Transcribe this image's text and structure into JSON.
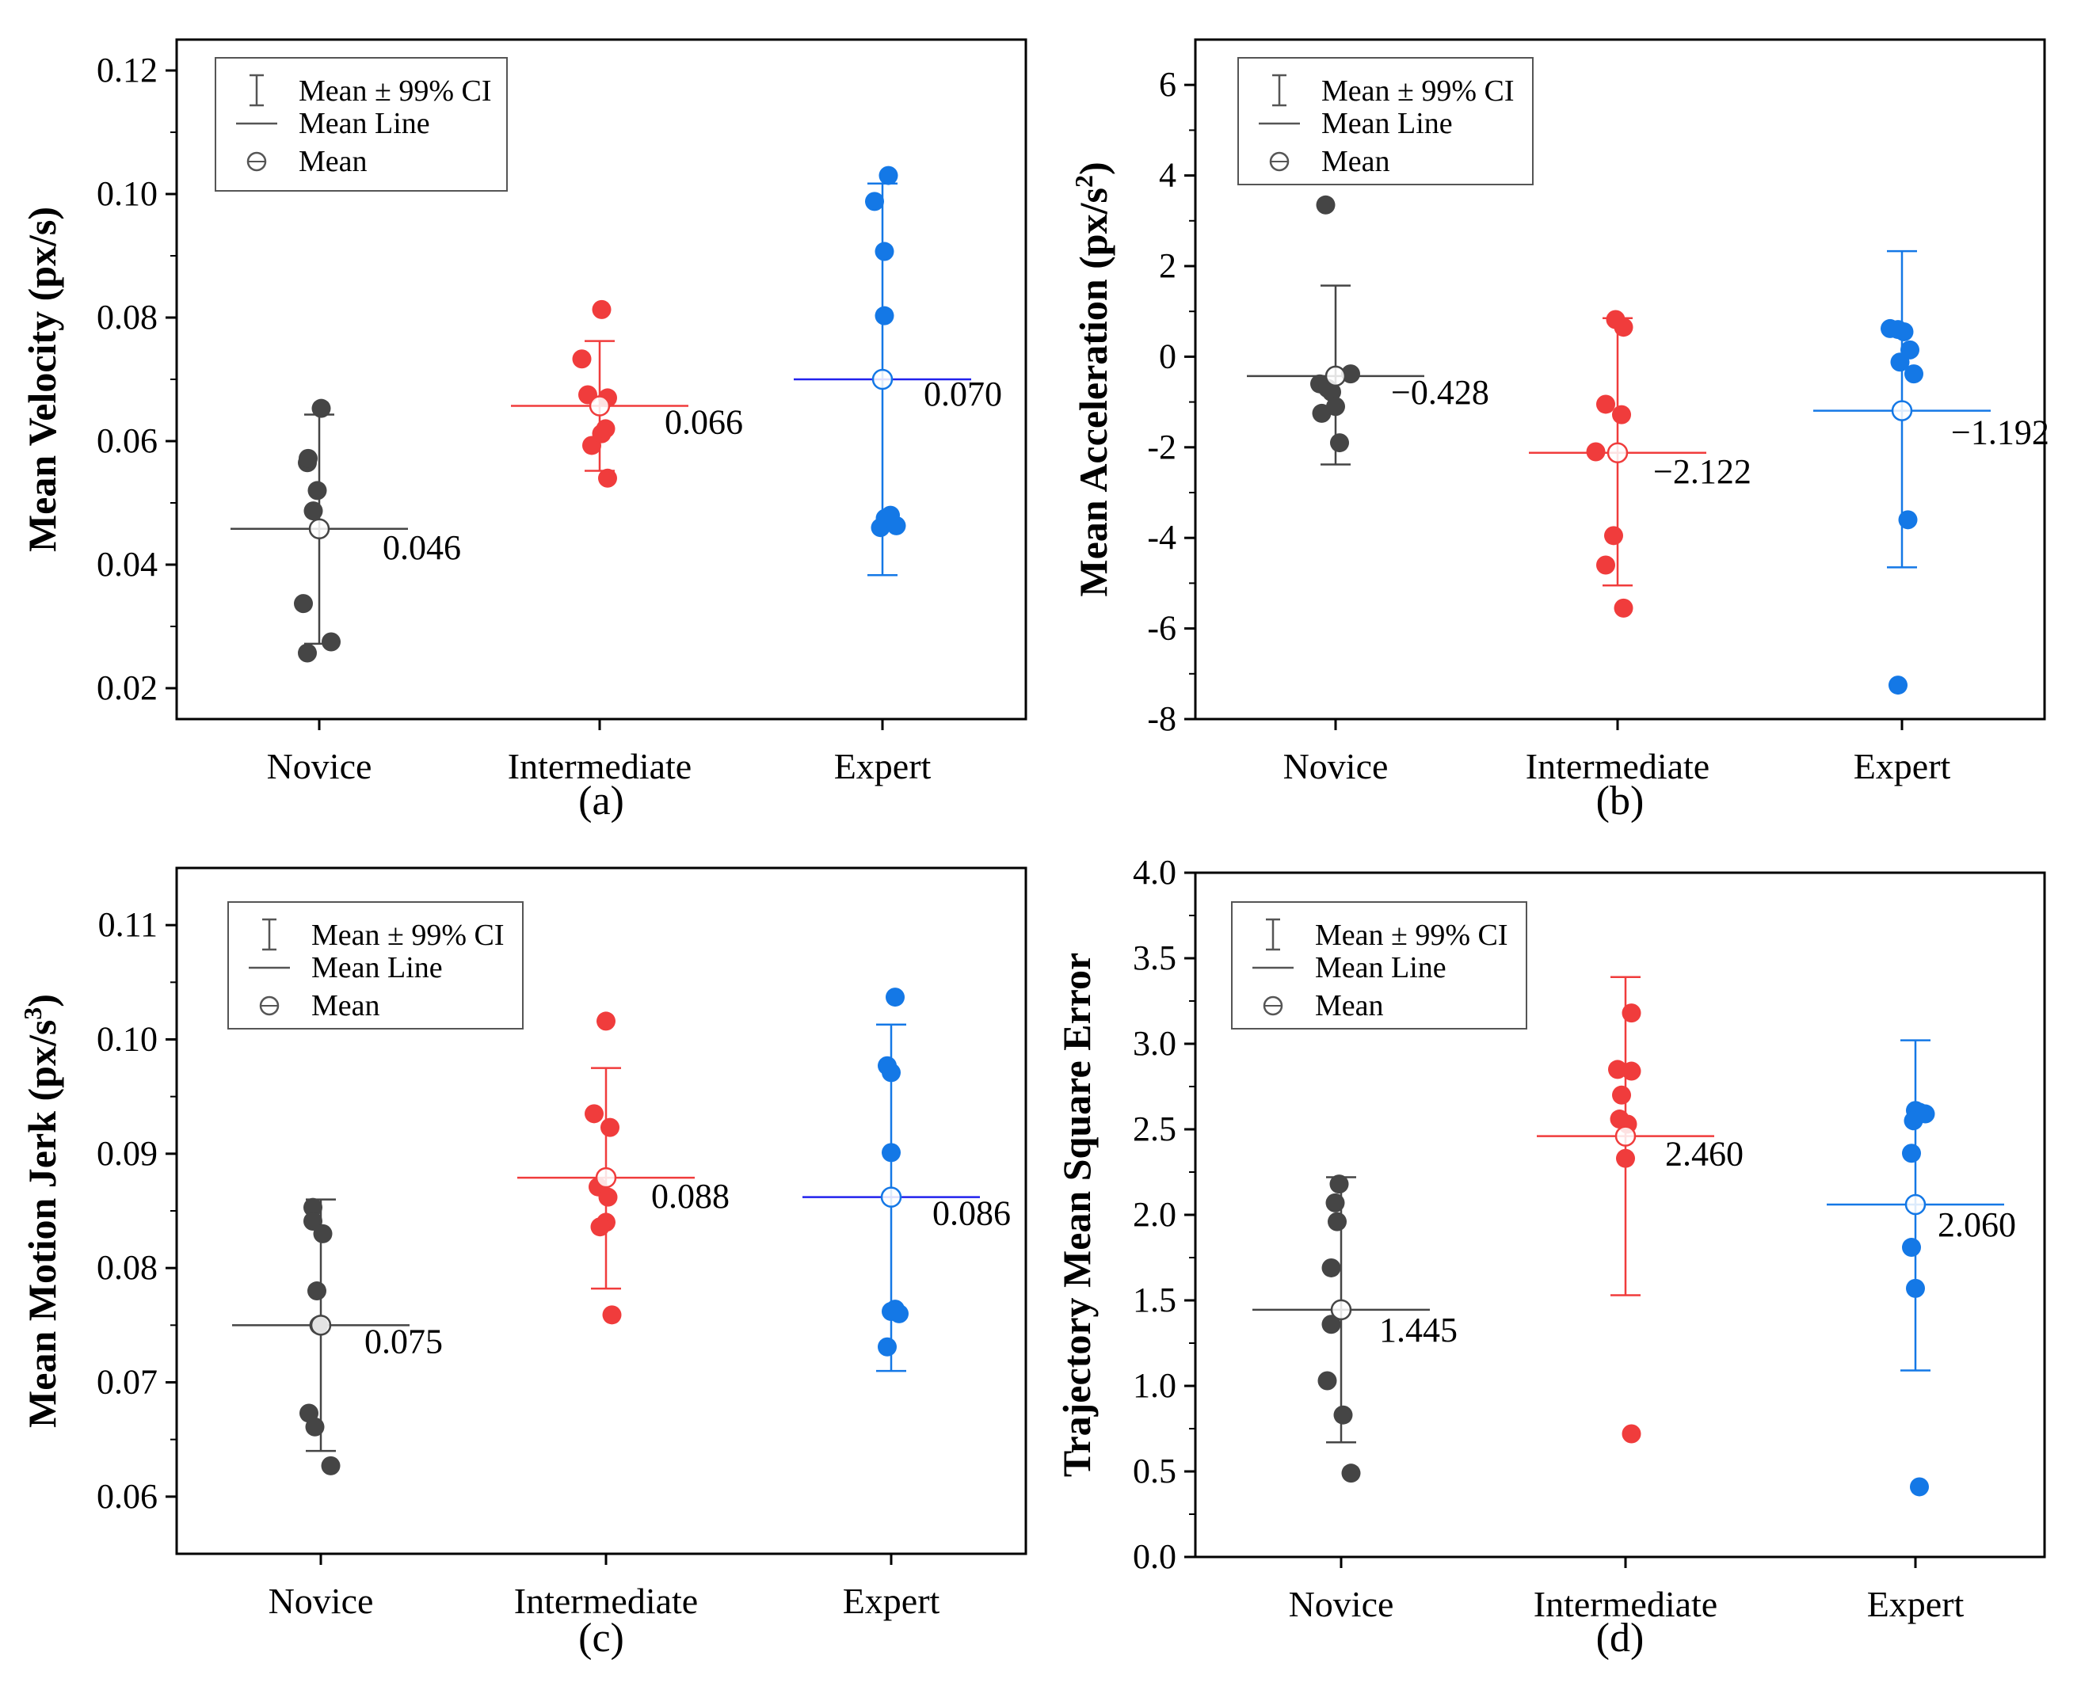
{
  "figure": {
    "legend_labels": [
      "Mean ± 99% CI",
      "Mean Line",
      "Mean"
    ],
    "colors": {
      "Novice": "#454545",
      "Intermediate": "#f03c3c",
      "Expert": "#1478e6",
      "axis": "#000000"
    }
  },
  "chart_data": [
    {
      "type": "scatter",
      "panel_label": "(a)",
      "title": "",
      "xlabel": "",
      "ylabel": "Mean Velocity (px/s)",
      "ylim": [
        0.015,
        0.125
      ],
      "yticks": [
        0.02,
        0.04,
        0.06,
        0.08,
        0.1,
        0.12
      ],
      "ytick_labels": [
        "0.02",
        "0.04",
        "0.06",
        "0.08",
        "0.10",
        "0.12"
      ],
      "categories": [
        "Novice",
        "Intermediate",
        "Expert"
      ],
      "grid": false,
      "legend_position": "top-left",
      "series": [
        {
          "name": "Novice",
          "mean": 0.0458,
          "mean_label": "0.046",
          "ci": [
            0.0272,
            0.0643
          ],
          "points": [
            [
              -0.4,
              0.0337
            ],
            [
              -0.3,
              0.0257
            ],
            [
              0.3,
              0.0275
            ],
            [
              -0.15,
              0.0487
            ],
            [
              -0.05,
              0.052
            ],
            [
              -0.3,
              0.0565
            ],
            [
              -0.28,
              0.0572
            ],
            [
              0.05,
              0.0653
            ]
          ]
        },
        {
          "name": "Intermediate",
          "mean": 0.0657,
          "mean_label": "0.066",
          "ci": [
            0.0552,
            0.0762
          ],
          "points": [
            [
              -0.45,
              0.0733
            ],
            [
              -0.3,
              0.0675
            ],
            [
              -0.2,
              0.0593
            ],
            [
              0.05,
              0.0612
            ],
            [
              0.15,
              0.062
            ],
            [
              0.2,
              0.067
            ],
            [
              0.2,
              0.054
            ],
            [
              0.05,
              0.0813
            ]
          ]
        },
        {
          "name": "Expert",
          "mean": 0.07,
          "mean_label": "0.070",
          "ci": [
            0.0383,
            0.1017
          ],
          "points": [
            [
              -0.2,
              0.0988
            ],
            [
              0.15,
              0.103
            ],
            [
              0.05,
              0.0907
            ],
            [
              0.05,
              0.0803
            ],
            [
              -0.05,
              0.046
            ],
            [
              0.07,
              0.0475
            ],
            [
              0.2,
              0.048
            ],
            [
              0.35,
              0.0463
            ]
          ]
        }
      ]
    },
    {
      "type": "scatter",
      "panel_label": "(b)",
      "title": "",
      "xlabel": "",
      "ylabel": "Mean Acceleration (px/s²)",
      "ylim": [
        -8,
        7
      ],
      "yticks": [
        -8,
        -6,
        -4,
        -2,
        0,
        2,
        4,
        6
      ],
      "ytick_labels": [
        "-8",
        "-6",
        "-4",
        "-2",
        "0",
        "2",
        "4",
        "6"
      ],
      "categories": [
        "Novice",
        "Intermediate",
        "Expert"
      ],
      "grid": false,
      "legend_position": "top-left",
      "series": [
        {
          "name": "Novice",
          "mean": -0.428,
          "mean_label": "−0.428",
          "ci": [
            -2.38,
            1.57
          ],
          "points": [
            [
              -0.25,
              3.35
            ],
            [
              -0.4,
              -0.6
            ],
            [
              -0.2,
              -0.7
            ],
            [
              -0.35,
              -1.25
            ],
            [
              -0.1,
              -0.78
            ],
            [
              0.0,
              -1.1
            ],
            [
              0.1,
              -1.9
            ],
            [
              0.38,
              -0.38
            ]
          ]
        },
        {
          "name": "Intermediate",
          "mean": -2.122,
          "mean_label": "−2.122",
          "ci": [
            -5.05,
            0.85
          ],
          "points": [
            [
              -0.55,
              -2.1
            ],
            [
              -0.3,
              -1.05
            ],
            [
              -0.05,
              0.82
            ],
            [
              0.15,
              0.65
            ],
            [
              0.1,
              -1.28
            ],
            [
              -0.1,
              -3.95
            ],
            [
              -0.3,
              -4.6
            ],
            [
              0.15,
              -5.55
            ]
          ]
        },
        {
          "name": "Expert",
          "mean": -1.192,
          "mean_label": "−1.192",
          "ci": [
            -4.65,
            2.33
          ],
          "points": [
            [
              -0.1,
              0.6
            ],
            [
              0.05,
              0.55
            ],
            [
              0.2,
              0.15
            ],
            [
              -0.05,
              -0.12
            ],
            [
              0.3,
              -0.38
            ],
            [
              0.15,
              -3.6
            ],
            [
              -0.1,
              -7.25
            ],
            [
              -0.3,
              0.62
            ]
          ]
        }
      ]
    },
    {
      "type": "scatter",
      "panel_label": "(c)",
      "title": "",
      "xlabel": "",
      "ylabel": "Mean Motion Jerk (px/s³)",
      "ylim": [
        0.055,
        0.115
      ],
      "yticks": [
        0.06,
        0.07,
        0.08,
        0.09,
        0.1,
        0.11
      ],
      "ytick_labels": [
        "0.06",
        "0.07",
        "0.08",
        "0.09",
        "0.10",
        "0.11"
      ],
      "categories": [
        "Novice",
        "Intermediate",
        "Expert"
      ],
      "grid": false,
      "legend_position": "top-left",
      "series": [
        {
          "name": "Novice",
          "mean": 0.075,
          "mean_label": "0.075",
          "ci": [
            0.064,
            0.086
          ],
          "points": [
            [
              -0.2,
              0.0853
            ],
            [
              -0.2,
              0.0841
            ],
            [
              0.05,
              0.083
            ],
            [
              -0.1,
              0.078
            ],
            [
              -0.05,
              0.075
            ],
            [
              -0.3,
              0.0673
            ],
            [
              -0.15,
              0.0661
            ],
            [
              0.25,
              0.0627
            ]
          ]
        },
        {
          "name": "Intermediate",
          "mean": 0.0879,
          "mean_label": "0.088",
          "ci": [
            0.0782,
            0.0975
          ],
          "points": [
            [
              -0.3,
              0.0935
            ],
            [
              -0.2,
              0.0871
            ],
            [
              0.1,
              0.0923
            ],
            [
              0.05,
              0.0862
            ],
            [
              0.0,
              0.084
            ],
            [
              -0.15,
              0.0836
            ],
            [
              0.0,
              0.1016
            ],
            [
              0.15,
              0.0759
            ]
          ]
        },
        {
          "name": "Expert",
          "mean": 0.0862,
          "mean_label": "0.086",
          "ci": [
            0.071,
            0.1013
          ],
          "points": [
            [
              -0.1,
              0.0977
            ],
            [
              0.0,
              0.0971
            ],
            [
              0.0,
              0.0901
            ],
            [
              0.1,
              0.1037
            ],
            [
              0.0,
              0.0762
            ],
            [
              0.1,
              0.0764
            ],
            [
              0.2,
              0.076
            ],
            [
              -0.1,
              0.0731
            ]
          ]
        }
      ]
    },
    {
      "type": "scatter",
      "panel_label": "(d)",
      "title": "",
      "xlabel": "",
      "ylabel": "Trajectory Mean Square Error",
      "ylim": [
        0.0,
        4.0
      ],
      "yticks": [
        0.0,
        0.5,
        1.0,
        1.5,
        2.0,
        2.5,
        3.0,
        3.5,
        4.0
      ],
      "ytick_labels": [
        "0.0",
        "0.5",
        "1.0",
        "1.5",
        "2.0",
        "2.5",
        "3.0",
        "3.5",
        "4.0"
      ],
      "categories": [
        "Novice",
        "Intermediate",
        "Expert"
      ],
      "grid": false,
      "legend_position": "top-left",
      "series": [
        {
          "name": "Novice",
          "mean": 1.445,
          "mean_label": "1.445",
          "ci": [
            0.67,
            2.22
          ],
          "points": [
            [
              -0.15,
              2.07
            ],
            [
              -0.05,
              2.18
            ],
            [
              -0.1,
              1.96
            ],
            [
              -0.25,
              1.69
            ],
            [
              -0.25,
              1.36
            ],
            [
              -0.35,
              1.03
            ],
            [
              0.05,
              0.83
            ],
            [
              0.25,
              0.49
            ]
          ]
        },
        {
          "name": "Intermediate",
          "mean": 2.46,
          "mean_label": "2.460",
          "ci": [
            1.53,
            3.39
          ],
          "points": [
            [
              -0.2,
              2.85
            ],
            [
              -0.15,
              2.56
            ],
            [
              -0.1,
              2.7
            ],
            [
              0.05,
              2.53
            ],
            [
              0.0,
              2.33
            ],
            [
              0.15,
              2.84
            ],
            [
              0.15,
              3.18
            ],
            [
              0.15,
              0.72
            ]
          ]
        },
        {
          "name": "Expert",
          "mean": 2.06,
          "mean_label": "2.060",
          "ci": [
            1.09,
            3.02
          ],
          "points": [
            [
              0.0,
              2.61
            ],
            [
              0.1,
              2.6
            ],
            [
              -0.05,
              2.55
            ],
            [
              0.25,
              2.59
            ],
            [
              -0.1,
              2.36
            ],
            [
              -0.1,
              1.81
            ],
            [
              0.0,
              1.57
            ],
            [
              0.1,
              0.41
            ]
          ]
        }
      ]
    }
  ]
}
